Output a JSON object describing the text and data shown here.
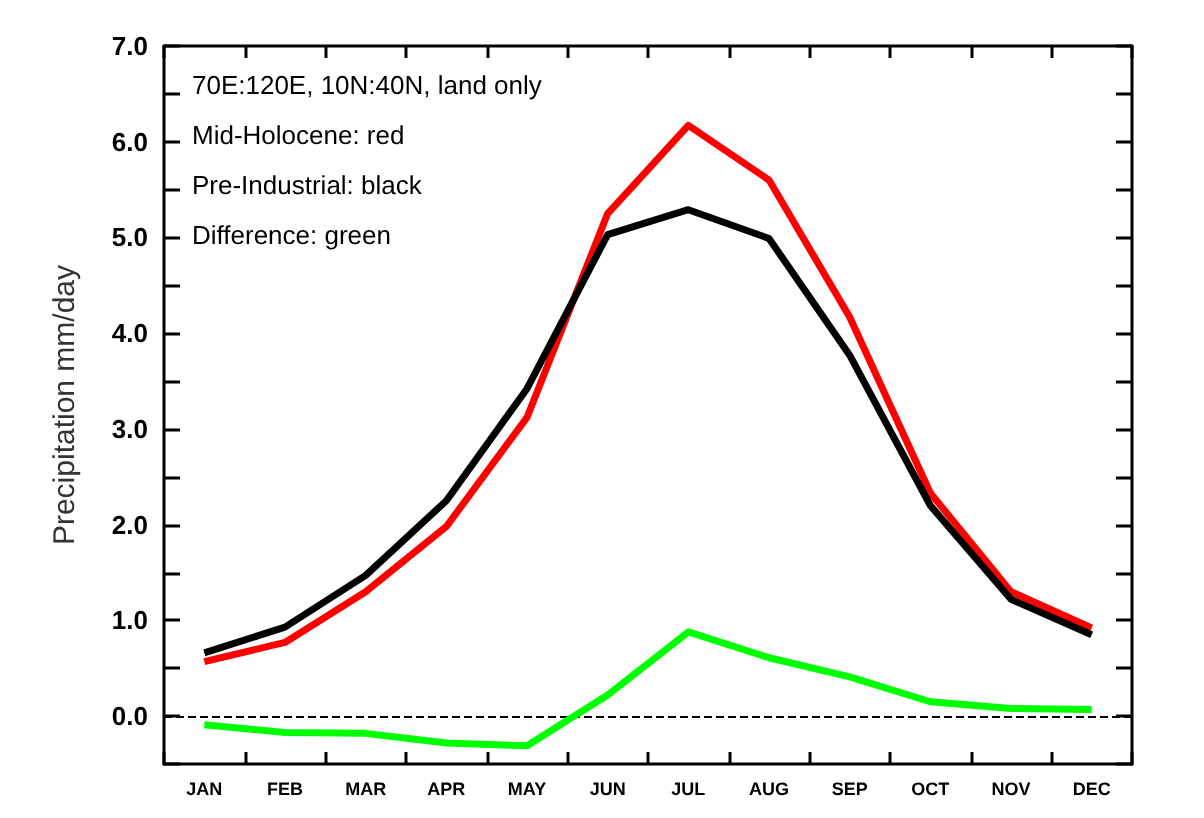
{
  "chart_data": {
    "type": "line",
    "ylabel": "Precipitation mm/day",
    "annotations": [
      "70E:120E, 10N:40N, land only",
      "Mid-Holocene: red",
      "Pre-Industrial: black",
      "Difference: green"
    ],
    "categories": [
      "JAN",
      "FEB",
      "MAR",
      "APR",
      "MAY",
      "JUN",
      "JUL",
      "AUG",
      "SEP",
      "OCT",
      "NOV",
      "DEC"
    ],
    "series": [
      {
        "color": "#ff0000",
        "values": [
          0.57,
          0.77,
          1.3,
          1.98,
          3.12,
          5.25,
          6.17,
          5.6,
          4.17,
          2.33,
          1.3,
          0.92
        ]
      },
      {
        "color": "#000000",
        "values": [
          0.66,
          0.93,
          1.47,
          2.25,
          3.42,
          5.03,
          5.29,
          4.99,
          3.77,
          2.2,
          1.22,
          0.85
        ]
      },
      {
        "color": "#00ff00",
        "values": [
          -0.09,
          -0.17,
          -0.18,
          -0.28,
          -0.31,
          0.22,
          0.88,
          0.61,
          0.41,
          0.15,
          0.08,
          0.07
        ]
      }
    ],
    "ylim": [
      -0.5,
      7.0
    ],
    "yticks": [
      {
        "value": -0.5,
        "label": null
      },
      {
        "value": 0,
        "label": "0.0"
      },
      {
        "value": 0.5,
        "label": null
      },
      {
        "value": 1,
        "label": "1.0"
      },
      {
        "value": 1.5,
        "label": null
      },
      {
        "value": 2,
        "label": "2.0"
      },
      {
        "value": 2.5,
        "label": null
      },
      {
        "value": 3,
        "label": "3.0"
      },
      {
        "value": 3.5,
        "label": null
      },
      {
        "value": 4,
        "label": "4.0"
      },
      {
        "value": 4.5,
        "label": null
      },
      {
        "value": 5,
        "label": "5.0"
      },
      {
        "value": 5.5,
        "label": null
      },
      {
        "value": 6,
        "label": "6.0"
      },
      {
        "value": 6.5,
        "label": null
      },
      {
        "value": 7,
        "label": "7.0"
      }
    ],
    "ref_lines": [
      {
        "axis": "y",
        "value": 0,
        "color": "#000000",
        "line_style": "dashed"
      }
    ],
    "grid": false,
    "marker": "none",
    "line_style": "solid"
  }
}
